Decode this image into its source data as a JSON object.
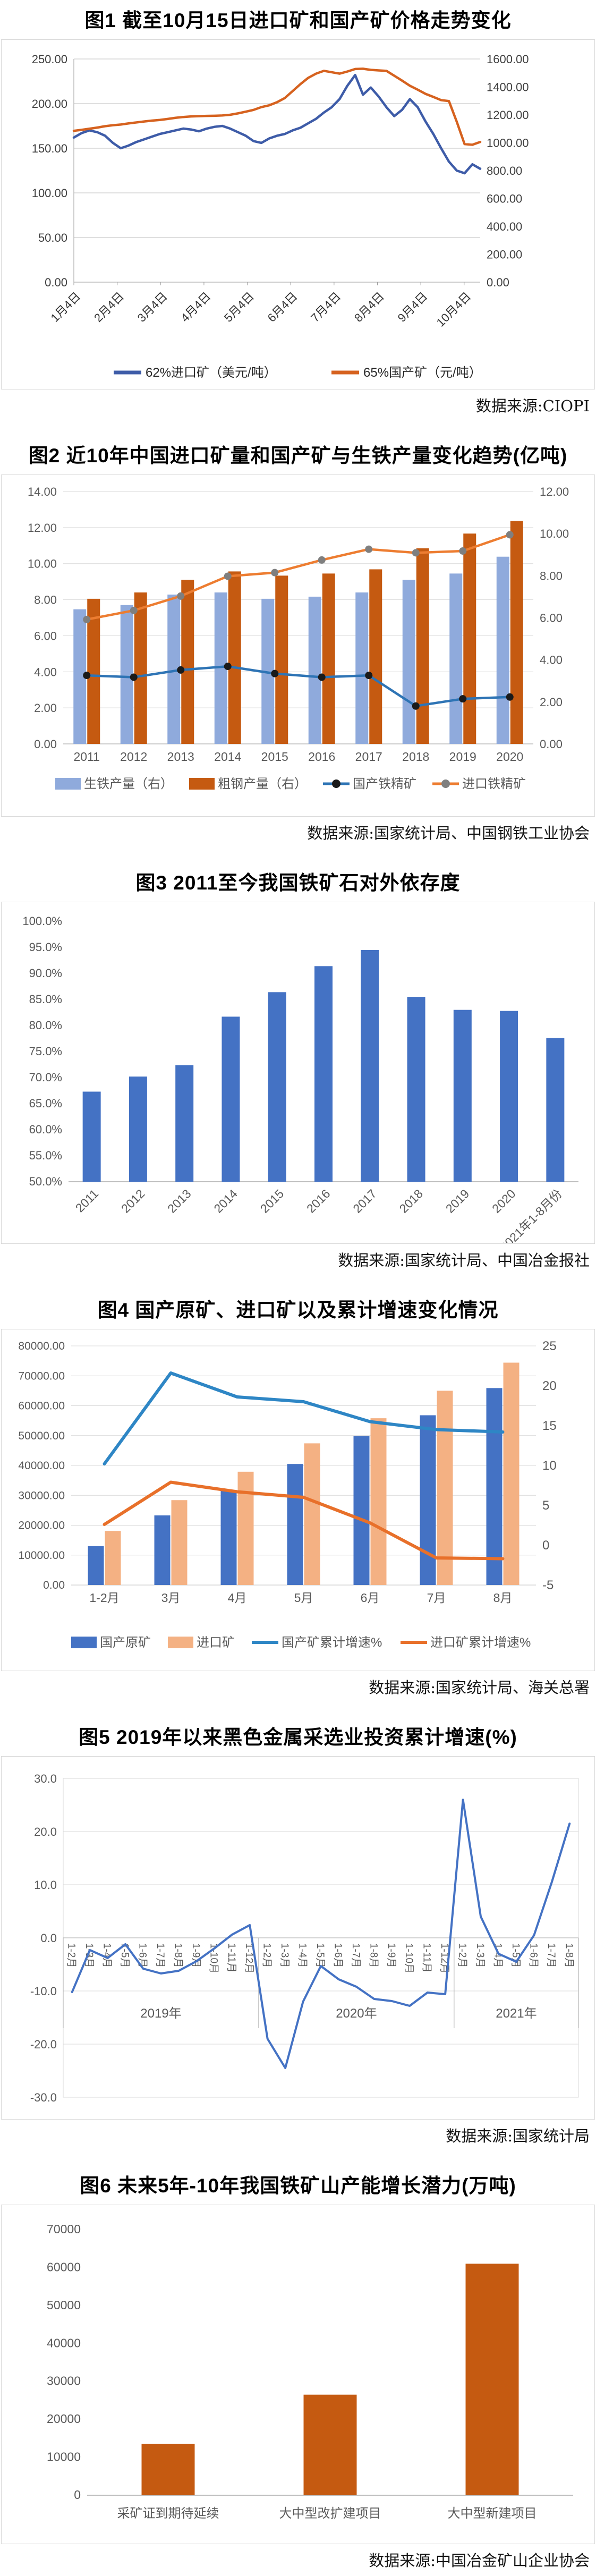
{
  "page": {
    "background": "#ffffff",
    "accent_blue": "#4472C4",
    "accent_orange": "#C55A11"
  },
  "chart_data": [
    {
      "id": "chart1",
      "type": "line",
      "title": "图1 截至10月15日进口矿和国产矿价格走势变化",
      "source": "数据来源:CIOPI",
      "left_axis": {
        "min": 0,
        "max": 250,
        "labels": [
          "250.00",
          "200.00",
          "150.00",
          "100.00",
          "50.00",
          "0.00"
        ]
      },
      "right_axis": {
        "min": 0,
        "max": 1600,
        "labels": [
          "1600.00",
          "1400.00",
          "1200.00",
          "1000.00",
          "800.00",
          "600.00",
          "400.00",
          "200.00",
          "0.00"
        ]
      },
      "x_labels": [
        "1月4日",
        "2月4日",
        "3月4日",
        "4月4日",
        "5月4日",
        "6月4日",
        "7月4日",
        "8月4日",
        "9月4日",
        "10月4日"
      ],
      "series": [
        {
          "name": "62%进口矿（美元/吨）",
          "color": "#3E5CA8",
          "axis": "left",
          "values": [
            162,
            167,
            170,
            168,
            164,
            156,
            150,
            153,
            157,
            160,
            163,
            166,
            168,
            170,
            172,
            171,
            169,
            172,
            174,
            175,
            172,
            168,
            164,
            158,
            156,
            161,
            164,
            166,
            170,
            173,
            178,
            183,
            190,
            196,
            205,
            220,
            232,
            210,
            218,
            208,
            196,
            186,
            193,
            205,
            196,
            180,
            166,
            150,
            135,
            125,
            122,
            132,
            127
          ]
        },
        {
          "name": "65%国产矿（元/吨）",
          "color": "#D6621F",
          "axis": "right",
          "values": [
            1085,
            1092,
            1100,
            1108,
            1118,
            1125,
            1130,
            1138,
            1145,
            1152,
            1158,
            1163,
            1170,
            1178,
            1184,
            1188,
            1190,
            1192,
            1193,
            1195,
            1200,
            1210,
            1222,
            1235,
            1255,
            1268,
            1290,
            1320,
            1370,
            1420,
            1465,
            1495,
            1515,
            1505,
            1495,
            1510,
            1528,
            1530,
            1522,
            1518,
            1515,
            1480,
            1445,
            1408,
            1380,
            1350,
            1328,
            1305,
            1298,
            1150,
            990,
            985,
            1005
          ]
        }
      ]
    },
    {
      "id": "chart2",
      "type": "bar+line",
      "title": "图2 近10年中国进口矿量和国产矿与生铁产量变化趋势(亿吨)",
      "source": "数据来源:国家统计局、中国钢铁工业协会",
      "categories": [
        "2011",
        "2012",
        "2013",
        "2014",
        "2015",
        "2016",
        "2017",
        "2018",
        "2019",
        "2020"
      ],
      "left_axis": {
        "min": 0,
        "max": 14,
        "labels": [
          "14.00",
          "12.00",
          "10.00",
          "8.00",
          "6.00",
          "4.00",
          "2.00",
          "0.00"
        ]
      },
      "right_axis": {
        "min": 0,
        "max": 12,
        "labels": [
          "12.00",
          "10.00",
          "8.00",
          "6.00",
          "4.00",
          "2.00",
          "0.00"
        ]
      },
      "bars": [
        {
          "name": "生铁产量（右）",
          "color": "#8FAADC",
          "values": [
            6.4,
            6.6,
            7.1,
            7.2,
            6.9,
            7.0,
            7.2,
            7.8,
            8.1,
            8.9
          ]
        },
        {
          "name": "粗钢产量（右）",
          "color": "#C55A11",
          "values": [
            6.9,
            7.2,
            7.8,
            8.2,
            8.0,
            8.1,
            8.3,
            9.3,
            10.0,
            10.6
          ]
        }
      ],
      "lines": [
        {
          "name": "国产铁精矿",
          "color": "#2E74B5",
          "marker": "#1a1a1a",
          "values": [
            3.8,
            3.7,
            4.1,
            4.3,
            3.9,
            3.7,
            3.8,
            2.1,
            2.5,
            2.6
          ]
        },
        {
          "name": "进口铁精矿",
          "color": "#ED7D31",
          "marker": "#7F7F7F",
          "values": [
            6.9,
            7.4,
            8.2,
            9.3,
            9.5,
            10.2,
            10.8,
            10.6,
            10.7,
            11.6
          ]
        }
      ]
    },
    {
      "id": "chart3",
      "type": "bar",
      "title": "图3 2011至今我国铁矿石对外依存度",
      "source": "数据来源:国家统计局、中国冶金报社",
      "categories": [
        "2011",
        "2012",
        "2013",
        "2014",
        "2015",
        "2016",
        "2017",
        "2018",
        "2019",
        "2020",
        "2021年1-8月份"
      ],
      "y_axis": {
        "min": 50,
        "max": 100,
        "labels": [
          "100.0%",
          "95.0%",
          "90.0%",
          "85.0%",
          "80.0%",
          "75.0%",
          "70.0%",
          "65.0%",
          "60.0%",
          "55.0%",
          "50.0%"
        ]
      },
      "color": "#4472C4",
      "values": [
        67.3,
        70.2,
        72.4,
        81.7,
        86.4,
        91.4,
        94.5,
        85.5,
        83.0,
        82.8,
        77.6
      ]
    },
    {
      "id": "chart4",
      "type": "bar+line",
      "title": "图4 国产原矿、进口矿以及累计增速变化情况",
      "source": "数据来源:国家统计局、海关总署",
      "categories": [
        "1-2月",
        "3月",
        "4月",
        "5月",
        "6月",
        "7月",
        "8月"
      ],
      "left_axis": {
        "min": 0,
        "max": 80000,
        "labels": [
          "80000.00",
          "70000.00",
          "60000.00",
          "50000.00",
          "40000.00",
          "30000.00",
          "20000.00",
          "10000.00",
          "0.00"
        ]
      },
      "right_axis": {
        "min": -5,
        "max": 25,
        "labels": [
          "25",
          "20",
          "15",
          "10",
          "5",
          "0",
          "-5"
        ]
      },
      "bars": [
        {
          "name": "国产原矿",
          "color": "#4472C4",
          "values": [
            13000,
            23300,
            31800,
            40500,
            49800,
            56800,
            65900
          ]
        },
        {
          "name": "进口矿",
          "color": "#F4B183",
          "values": [
            18100,
            28400,
            37900,
            47400,
            55800,
            65000,
            74400
          ]
        }
      ],
      "lines": [
        {
          "name": "国产矿累计增速%",
          "color": "#2E86C5",
          "values": [
            10.2,
            21.6,
            18.6,
            18.0,
            15.5,
            14.5,
            14.2
          ]
        },
        {
          "name": "进口矿累计增速%",
          "color": "#E8702A",
          "values": [
            2.6,
            7.9,
            6.7,
            6.0,
            2.8,
            -1.6,
            -1.7
          ]
        }
      ]
    },
    {
      "id": "chart5",
      "type": "line",
      "title": "图5 2019年以来黑色金属采选业投资累计增速(%)",
      "source": "数据来源:国家统计局",
      "y_axis": {
        "min": -30,
        "max": 30,
        "labels": [
          "30.0",
          "20.0",
          "10.0",
          "0.0",
          "-10.0",
          "-20.0",
          "-30.0"
        ]
      },
      "color": "#4472C4",
      "groups": [
        {
          "label": "2019年",
          "months": [
            "1-2月",
            "1-3月",
            "1-4月",
            "1-5月",
            "1-6月",
            "1-7月",
            "1-8月",
            "1-9月",
            "1-10月",
            "1-11月",
            "1-12月"
          ],
          "values": [
            -10.2,
            -2.3,
            -3.8,
            -1.2,
            -5.8,
            -6.7,
            -6.2,
            -4.4,
            -2.0,
            0.6,
            2.4
          ]
        },
        {
          "label": "2020年",
          "months": [
            "1-2月",
            "1-3月",
            "1-4月",
            "1-5月",
            "1-6月",
            "1-7月",
            "1-8月",
            "1-9月",
            "1-10月",
            "1-11月",
            "1-12月"
          ],
          "values": [
            -19.0,
            -24.5,
            -12.0,
            -5.3,
            -7.8,
            -9.2,
            -11.5,
            -11.9,
            -12.8,
            -10.3,
            -10.6
          ]
        },
        {
          "label": "2021年",
          "months": [
            "1-2月",
            "1-3月",
            "1-4月",
            "1-5月",
            "1-6月",
            "1-7月",
            "1-8月"
          ],
          "values": [
            26.0,
            4.0,
            -3.0,
            -4.5,
            0.5,
            10.5,
            21.5
          ]
        }
      ]
    },
    {
      "id": "chart6",
      "type": "bar",
      "title": "图6 未来5年-10年我国铁矿山产能增长潜力(万吨)",
      "source": "数据来源:中国冶金矿山企业协会",
      "categories": [
        "采矿证到期待延续",
        "大中型改扩建项目",
        "大中型新建项目"
      ],
      "y_axis": {
        "min": 0,
        "max": 70000,
        "labels": [
          "70000",
          "60000",
          "50000",
          "40000",
          "30000",
          "20000",
          "10000",
          "0"
        ]
      },
      "color": "#C55A11",
      "values": [
        13500,
        26500,
        61000
      ]
    }
  ]
}
